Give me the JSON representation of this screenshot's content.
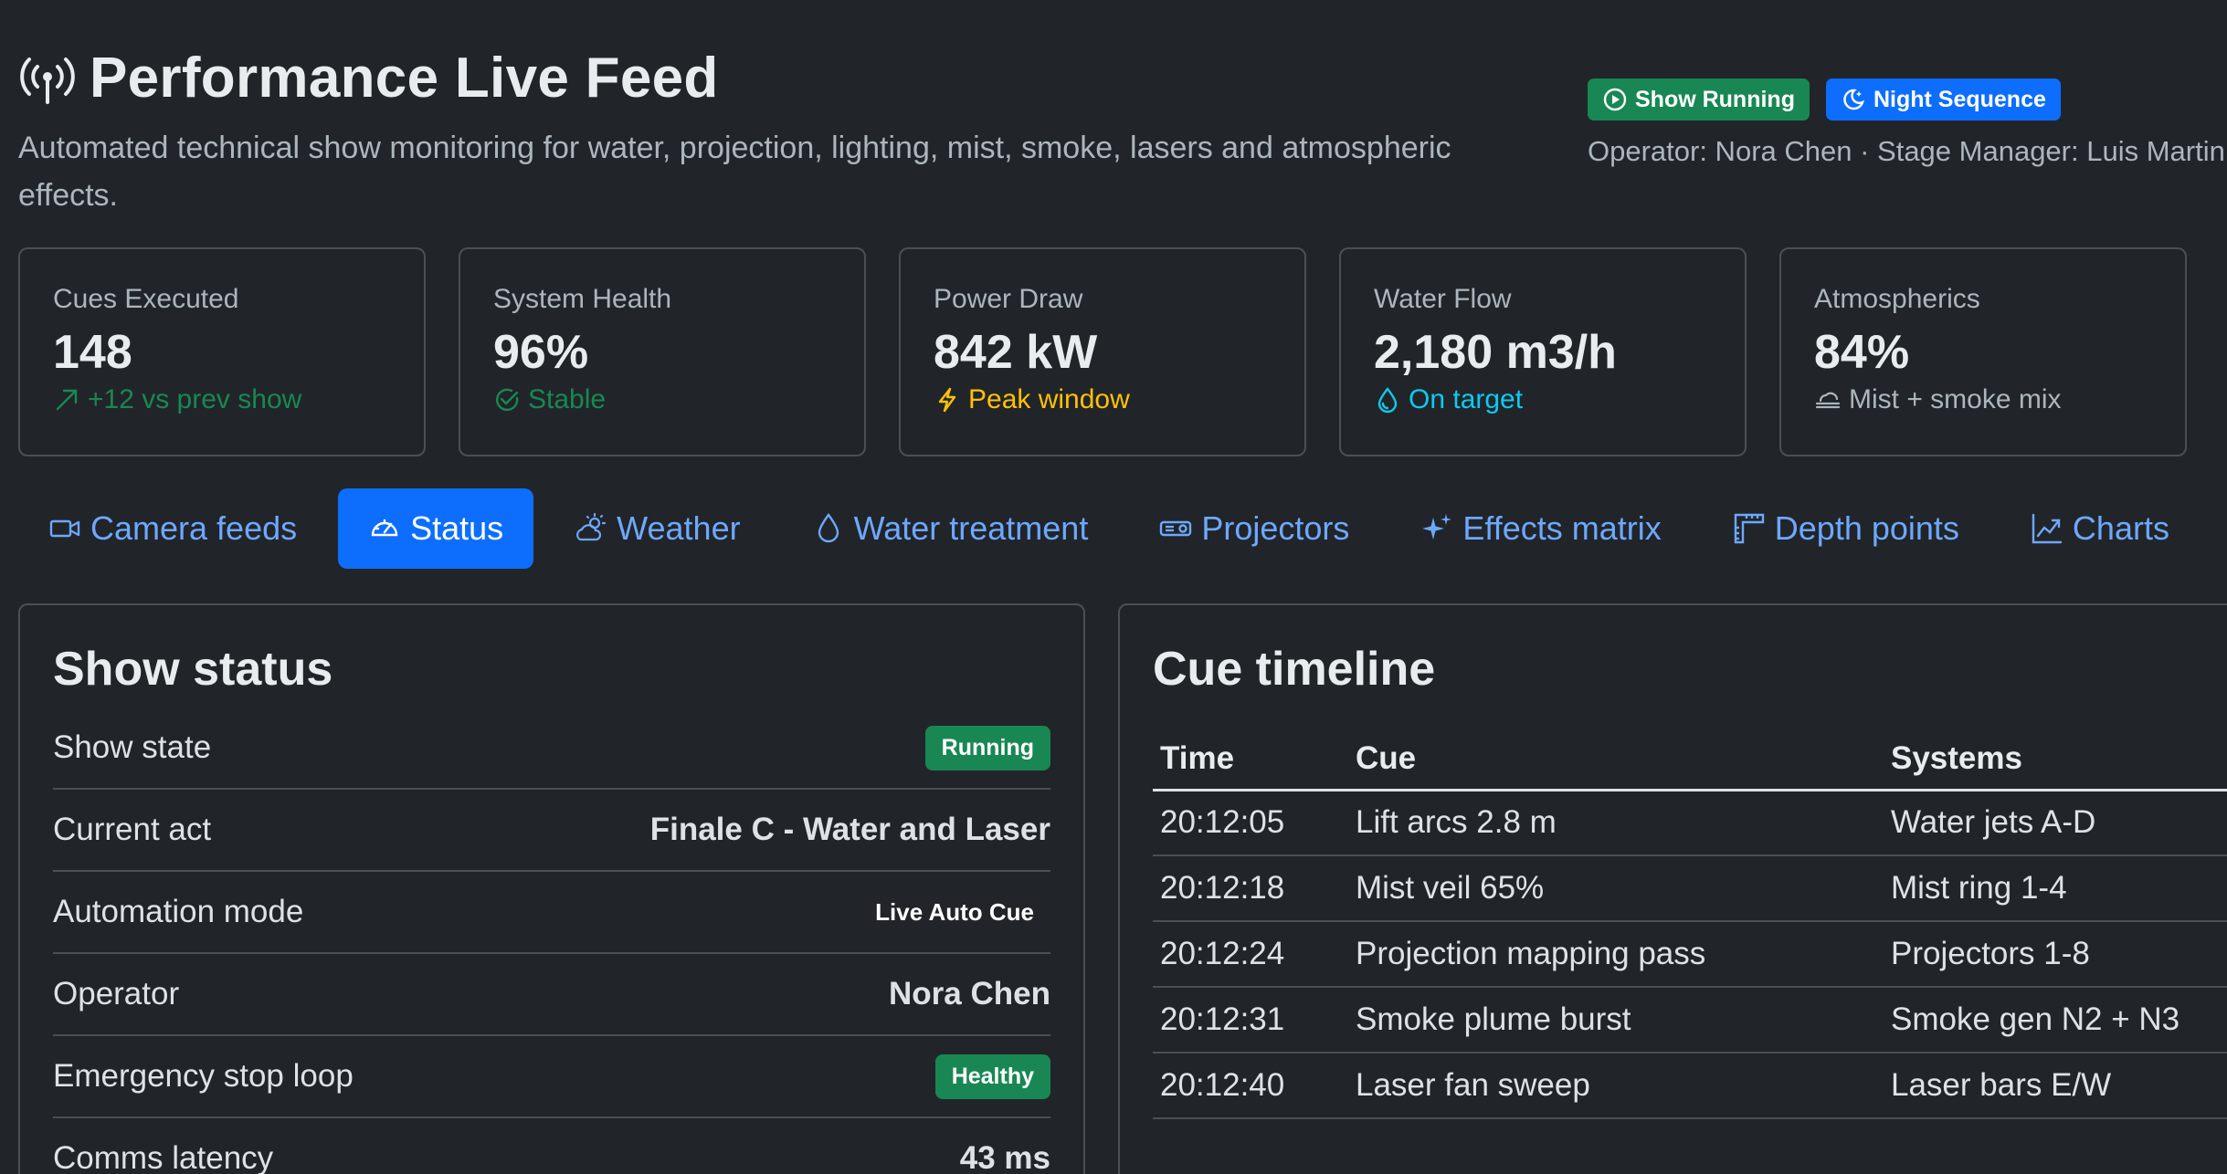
{
  "header": {
    "title": "Performance Live Feed",
    "subtitle": "Automated technical show monitoring for water, projection, lighting, mist, smoke, lasers and atmospheric effects.",
    "badges": {
      "show_running": "Show Running",
      "night_sequence": "Night Sequence"
    },
    "operator_line": "Operator: Nora Chen · Stage Manager: Luis Martin ·"
  },
  "stats": [
    {
      "label": "Cues Executed",
      "value": "148",
      "note": "+12 vs prev show",
      "icon": "arrow-up-right-icon"
    },
    {
      "label": "System Health",
      "value": "96%",
      "note": "Stable",
      "icon": "check-circle-icon"
    },
    {
      "label": "Power Draw",
      "value": "842 kW",
      "note": "Peak window",
      "icon": "lightning-icon"
    },
    {
      "label": "Water Flow",
      "value": "2,180 m3/h",
      "note": "On target",
      "icon": "droplet-icon"
    },
    {
      "label": "Atmospherics",
      "value": "84%",
      "note": "Mist + smoke mix",
      "icon": "cloud-haze-icon"
    }
  ],
  "tabs": [
    {
      "label": "Camera feeds",
      "icon": "camera-video-icon"
    },
    {
      "label": "Status",
      "icon": "speedometer-icon",
      "active": true
    },
    {
      "label": "Weather",
      "icon": "cloud-sun-icon"
    },
    {
      "label": "Water treatment",
      "icon": "droplet-icon"
    },
    {
      "label": "Projectors",
      "icon": "projector-icon"
    },
    {
      "label": "Effects matrix",
      "icon": "stars-icon"
    },
    {
      "label": "Depth points",
      "icon": "rulers-icon"
    },
    {
      "label": "Charts",
      "icon": "graph-up-icon"
    }
  ],
  "show_status": {
    "title": "Show status",
    "rows": [
      {
        "label": "Show state",
        "value": "Running"
      },
      {
        "label": "Current act",
        "value": "Finale C - Water and Laser"
      },
      {
        "label": "Automation mode",
        "value": "Live Auto Cue"
      },
      {
        "label": "Operator",
        "value": "Nora Chen"
      },
      {
        "label": "Emergency stop loop",
        "value": "Healthy"
      },
      {
        "label": "Comms latency",
        "value": "43 ms"
      }
    ]
  },
  "cue_timeline": {
    "title": "Cue timeline",
    "columns": [
      "Time",
      "Cue",
      "Systems"
    ],
    "rows": [
      [
        "20:12:05",
        "Lift arcs 2.8 m",
        "Water jets A-D"
      ],
      [
        "20:12:18",
        "Mist veil 65%",
        "Mist ring 1-4"
      ],
      [
        "20:12:24",
        "Projection mapping pass",
        "Projectors 1-8"
      ],
      [
        "20:12:31",
        "Smoke plume burst",
        "Smoke gen N2 + N3"
      ],
      [
        "20:12:40",
        "Laser fan sweep",
        "Laser bars E/W"
      ]
    ]
  },
  "colors": {
    "background": "#212529",
    "accent": "#0d6efd",
    "success": "#198754",
    "warning": "#ffc107",
    "info": "#0dcaf0"
  }
}
